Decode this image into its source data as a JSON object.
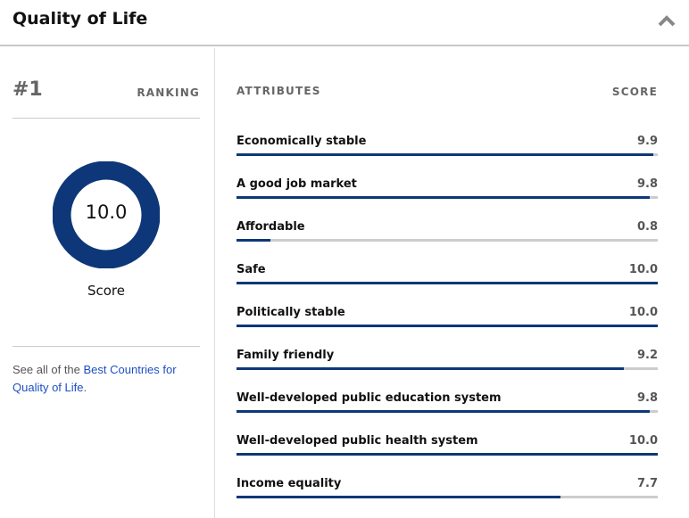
{
  "header": {
    "title": "Quality of Life",
    "collapse_icon": "chevron-up-icon"
  },
  "summary": {
    "rank": "#1",
    "rank_label": "RANKING",
    "score": "10.0",
    "score_value": 10.0,
    "score_max": 10,
    "score_label": "Score",
    "note_prefix": "See all of the ",
    "note_link": "Best Countries for Quality of Life",
    "note_suffix": "."
  },
  "attributes": {
    "header": "ATTRIBUTES",
    "score_header": "SCORE",
    "items": [
      {
        "label": "Economically stable",
        "score": "9.9"
      },
      {
        "label": "A good job market",
        "score": "9.8"
      },
      {
        "label": "Affordable",
        "score": "0.8"
      },
      {
        "label": "Safe",
        "score": "10.0"
      },
      {
        "label": "Politically stable",
        "score": "10.0"
      },
      {
        "label": "Family friendly",
        "score": "9.2"
      },
      {
        "label": "Well-developed public education system",
        "score": "9.8"
      },
      {
        "label": "Well-developed public health system",
        "score": "10.0"
      },
      {
        "label": "Income equality",
        "score": "7.7"
      }
    ]
  },
  "colors": {
    "accent": "#0d3778",
    "track": "#cccccc",
    "link": "#1d4fc4"
  }
}
